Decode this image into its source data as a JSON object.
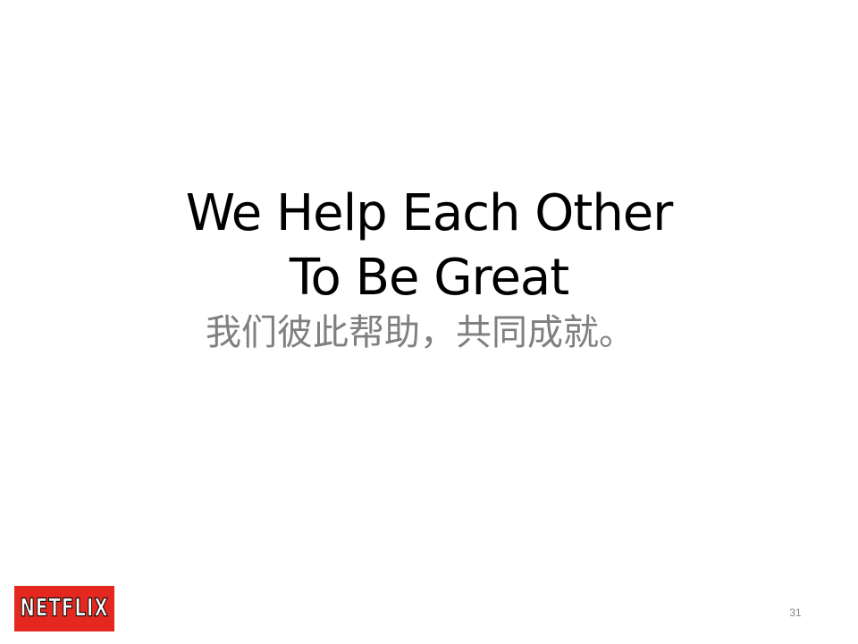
{
  "slide": {
    "title_line1": "We Help Each Other",
    "title_line2": "To Be Great",
    "subtitle": "我们彼此帮助，共同成就。",
    "logo_text": "NETFLIX",
    "page_number": "31"
  },
  "colors": {
    "background": "#ffffff",
    "title": "#000000",
    "subtitle": "#7f7f7f",
    "logo_background": "#e5281f",
    "logo_text": "#ffffff"
  }
}
